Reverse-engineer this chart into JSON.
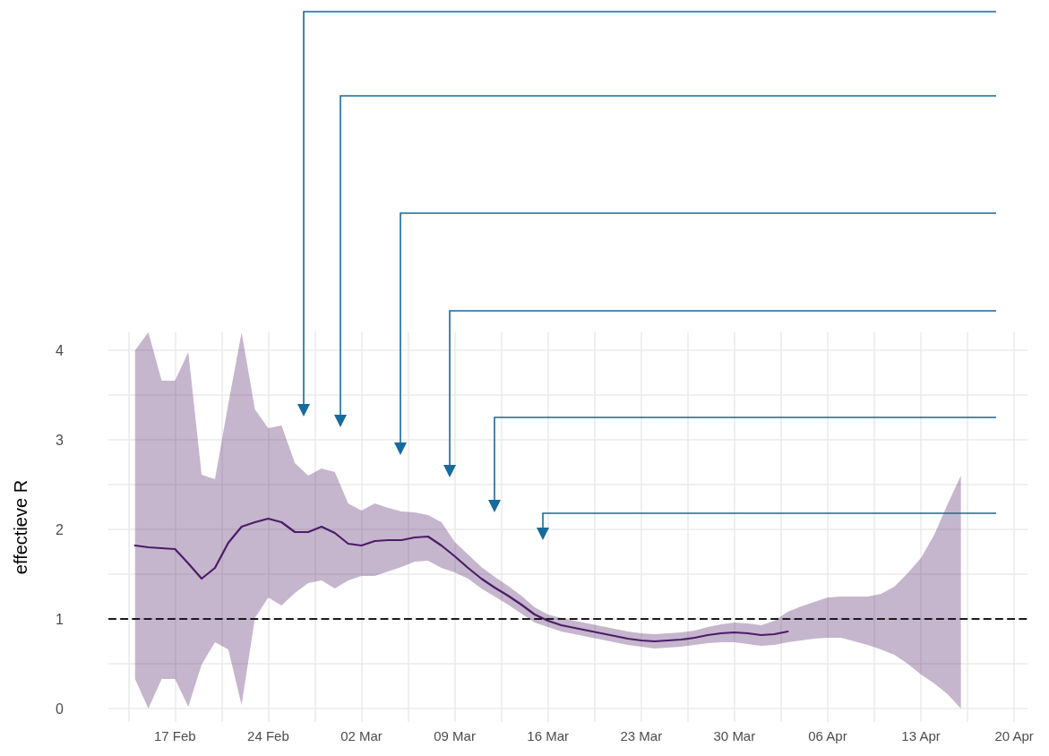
{
  "chart_data": {
    "type": "line",
    "ylabel": "effectieve R",
    "x": [
      "--02-14",
      "--02-15",
      "--02-16",
      "--02-17",
      "--02-18",
      "--02-19",
      "--02-20",
      "--02-21",
      "--02-22",
      "--02-23",
      "--02-24",
      "--02-25",
      "--02-26",
      "--02-27",
      "--02-28",
      "--02-29",
      "--03-01",
      "--03-02",
      "--03-03",
      "--03-04",
      "--03-05",
      "--03-06",
      "--03-07",
      "--03-08",
      "--03-09",
      "--03-10",
      "--03-11",
      "--03-12",
      "--03-13",
      "--03-14",
      "--03-15",
      "--03-16",
      "--03-17",
      "--03-18",
      "--03-19",
      "--03-20",
      "--03-21",
      "--03-22",
      "--03-23",
      "--03-24",
      "--03-25",
      "--03-26",
      "--03-27",
      "--03-28",
      "--03-29",
      "--03-30",
      "--03-31",
      "--04-01",
      "--04-02",
      "--04-03",
      "--04-04",
      "--04-05",
      "--04-06",
      "--04-07",
      "--04-08",
      "--04-09",
      "--04-10",
      "--04-11",
      "--04-12",
      "--04-13",
      "--04-14",
      "--04-15",
      "--04-16"
    ],
    "series": [
      {
        "color": "#4b1d66",
        "values": [
          1.82,
          1.8,
          1.79,
          1.78,
          1.62,
          1.45,
          1.57,
          1.85,
          2.03,
          2.08,
          2.12,
          2.08,
          1.97,
          1.97,
          2.03,
          1.96,
          1.84,
          1.82,
          1.87,
          1.88,
          1.88,
          1.91,
          1.92,
          1.82,
          1.7,
          1.57,
          1.45,
          1.35,
          1.26,
          1.16,
          1.05,
          0.98,
          0.93,
          0.9,
          0.87,
          0.84,
          0.81,
          0.78,
          0.76,
          0.75,
          0.76,
          0.77,
          0.79,
          0.82,
          0.84,
          0.85,
          0.84,
          0.82,
          0.83,
          0.86,
          null,
          null,
          null,
          null,
          null,
          null,
          null,
          null,
          null,
          null,
          null,
          null,
          null
        ],
        "upper": [
          4.0,
          4.2,
          3.66,
          3.66,
          3.98,
          2.61,
          2.56,
          3.4,
          4.2,
          3.34,
          3.13,
          3.16,
          2.74,
          2.6,
          2.68,
          2.64,
          2.29,
          2.21,
          2.29,
          2.24,
          2.2,
          2.19,
          2.16,
          2.08,
          1.86,
          1.72,
          1.58,
          1.47,
          1.37,
          1.26,
          1.13,
          1.05,
          1.01,
          0.98,
          0.95,
          0.92,
          0.89,
          0.86,
          0.84,
          0.83,
          0.84,
          0.85,
          0.87,
          0.91,
          0.94,
          0.96,
          0.95,
          0.93,
          0.98,
          1.08,
          1.14,
          1.19,
          1.24,
          1.25,
          1.25,
          1.25,
          1.28,
          1.36,
          1.51,
          1.68,
          1.94,
          2.28,
          2.6
        ],
        "lower": [
          0.33,
          0.0,
          0.33,
          0.33,
          0.02,
          0.49,
          0.74,
          0.66,
          0.04,
          1.01,
          1.24,
          1.15,
          1.29,
          1.4,
          1.43,
          1.34,
          1.43,
          1.48,
          1.48,
          1.53,
          1.58,
          1.64,
          1.65,
          1.57,
          1.52,
          1.45,
          1.34,
          1.25,
          1.16,
          1.06,
          0.96,
          0.91,
          0.86,
          0.83,
          0.8,
          0.77,
          0.74,
          0.71,
          0.69,
          0.67,
          0.68,
          0.69,
          0.71,
          0.73,
          0.74,
          0.74,
          0.72,
          0.7,
          0.71,
          0.74,
          0.76,
          0.78,
          0.79,
          0.79,
          0.75,
          0.71,
          0.66,
          0.6,
          0.5,
          0.38,
          0.28,
          0.16,
          0.0
        ]
      }
    ],
    "ref_lines": [
      {
        "axis": "y",
        "value": 1,
        "color": "#1a1a1a",
        "line_style": "dashed"
      }
    ],
    "xlim": [
      "--02-12",
      "--04-21"
    ],
    "xticks": [
      {
        "value": "--02-13T12:00",
        "label": null
      },
      {
        "value": "--02-17",
        "label": "17 Feb"
      },
      {
        "value": "--02-20T12:00",
        "label": null
      },
      {
        "value": "--02-24",
        "label": "24 Feb"
      },
      {
        "value": "--02-27T12:00",
        "label": null
      },
      {
        "value": "--03-02",
        "label": "02 Mar"
      },
      {
        "value": "--03-05T12:00",
        "label": null
      },
      {
        "value": "--03-09",
        "label": "09 Mar"
      },
      {
        "value": "--03-12T12:00",
        "label": null
      },
      {
        "value": "--03-16",
        "label": "16 Mar"
      },
      {
        "value": "--03-19T12:00",
        "label": null
      },
      {
        "value": "--03-23",
        "label": "23 Mar"
      },
      {
        "value": "--03-26T12:00",
        "label": null
      },
      {
        "value": "--03-30",
        "label": "30 Mar"
      },
      {
        "value": "--04-02T12:00",
        "label": null
      },
      {
        "value": "--04-06",
        "label": "06 Apr"
      },
      {
        "value": "--04-09T12:00",
        "label": null
      },
      {
        "value": "--04-13",
        "label": "13 Apr"
      },
      {
        "value": "--04-16T12:00",
        "label": null
      },
      {
        "value": "--04-20",
        "label": "20 Apr"
      }
    ],
    "ylim": [
      -0.15,
      4.2
    ],
    "yticks": [
      0,
      {
        "value": 0.5,
        "label": null
      },
      1,
      {
        "value": 1.5,
        "label": null
      },
      2,
      {
        "value": 2.5,
        "label": null
      },
      3,
      {
        "value": 3.5,
        "label": null
      },
      4
    ],
    "grid": true,
    "legend": false,
    "marker": "none",
    "line_style": "solid"
  }
}
